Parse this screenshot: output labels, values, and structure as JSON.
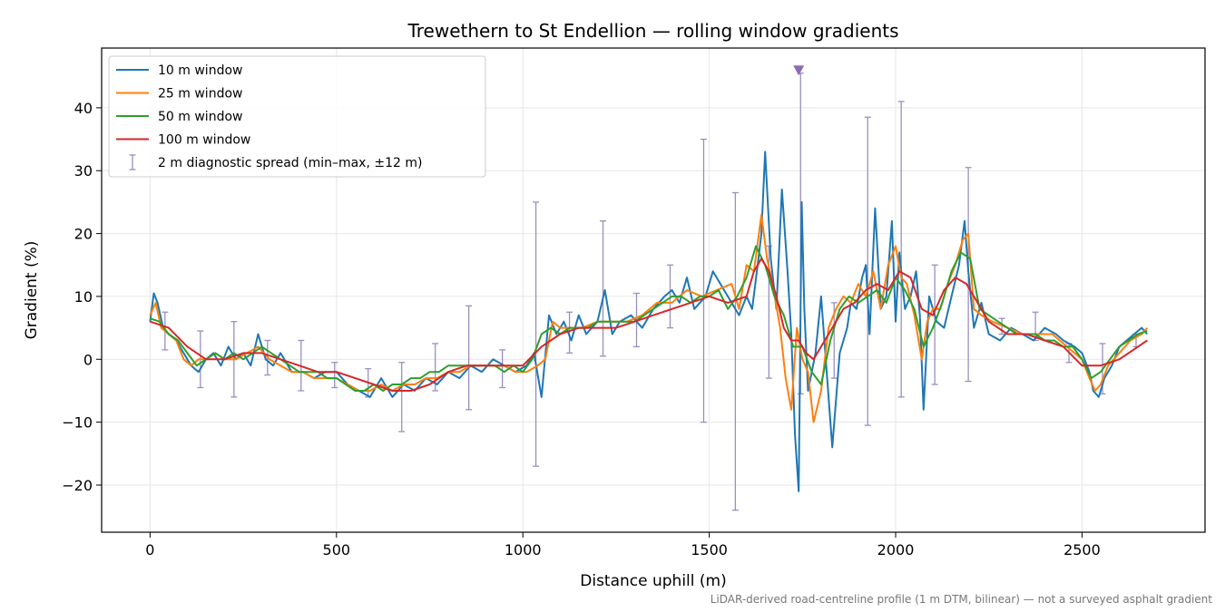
{
  "chart_data": {
    "type": "line",
    "title": "Trewethern to St Endellion — rolling window gradients",
    "xlabel": "Distance uphill (m)",
    "ylabel": "Gradient (%)",
    "footnote": "LiDAR-derived road-centreline profile (1 m DTM, bilinear) — not a surveyed asphalt gradient",
    "xlim": [
      -130,
      2830
    ],
    "ylim": [
      -27.5,
      49.5
    ],
    "xticks": [
      0,
      500,
      1000,
      1500,
      2000,
      2500
    ],
    "xtick_labels": [
      "0",
      "500",
      "1000",
      "1500",
      "2000",
      "2500"
    ],
    "yticks": [
      -20,
      -10,
      0,
      10,
      20,
      30,
      40
    ],
    "ytick_labels": [
      "−20",
      "−10",
      "0",
      "10",
      "20",
      "30",
      "40"
    ],
    "grid": true,
    "legend_position": "top-left",
    "colors": {
      "w10": "#1f77b4",
      "w25": "#ff7f0e",
      "w50": "#2ca02c",
      "w100": "#d62728",
      "errorbar": "#9a8fc0",
      "marker": "#8c6bb1"
    },
    "series": [
      {
        "name": "10 m window",
        "key": "w10",
        "x": [
          0,
          10,
          20,
          35,
          50,
          70,
          90,
          110,
          130,
          150,
          170,
          190,
          210,
          230,
          250,
          270,
          290,
          310,
          330,
          350,
          380,
          410,
          440,
          470,
          500,
          530,
          560,
          590,
          620,
          650,
          680,
          710,
          740,
          770,
          800,
          830,
          860,
          890,
          920,
          950,
          980,
          1010,
          1030,
          1050,
          1070,
          1090,
          1110,
          1130,
          1150,
          1170,
          1200,
          1220,
          1240,
          1260,
          1290,
          1320,
          1350,
          1380,
          1400,
          1420,
          1440,
          1460,
          1490,
          1510,
          1530,
          1560,
          1580,
          1600,
          1615,
          1630,
          1640,
          1650,
          1665,
          1680,
          1695,
          1710,
          1720,
          1730,
          1740,
          1748,
          1755,
          1765,
          1775,
          1785,
          1800,
          1810,
          1830,
          1850,
          1870,
          1880,
          1895,
          1910,
          1920,
          1930,
          1945,
          1960,
          1975,
          1990,
          2000,
          2010,
          2025,
          2040,
          2055,
          2065,
          2075,
          2090,
          2110,
          2130,
          2150,
          2170,
          2185,
          2195,
          2210,
          2230,
          2250,
          2280,
          2310,
          2340,
          2370,
          2400,
          2430,
          2450,
          2480,
          2500,
          2520,
          2530,
          2545,
          2560,
          2580,
          2600,
          2620,
          2640,
          2660,
          2675
        ],
        "y": [
          6,
          10.5,
          9,
          5,
          4,
          3,
          1,
          -1,
          -2,
          0,
          1,
          -1,
          2,
          0,
          1,
          -1,
          4,
          0,
          -1,
          1,
          -2,
          -2,
          -3,
          -2,
          -2,
          -4,
          -5,
          -6,
          -3,
          -6,
          -4,
          -5,
          -3,
          -4,
          -2,
          -3,
          -1,
          -2,
          0,
          -1,
          -2,
          -1,
          1,
          -6,
          7,
          4,
          6,
          3,
          7,
          4,
          6,
          11,
          4,
          6,
          7,
          5,
          8,
          10,
          11,
          9,
          13,
          8,
          10,
          14,
          12,
          9,
          7,
          10,
          8,
          15,
          20,
          33,
          16,
          8,
          27,
          14,
          4,
          -12,
          -21,
          25,
          8,
          -5,
          -2,
          1,
          10,
          2,
          -14,
          1,
          5,
          9,
          8,
          13,
          15,
          4,
          24,
          8,
          10,
          22,
          6,
          17,
          8,
          10,
          14,
          7,
          -8,
          10,
          6,
          5,
          10,
          15,
          22,
          14,
          5,
          9,
          4,
          3,
          5,
          4,
          3,
          5,
          4,
          3,
          2,
          1,
          -2,
          -5,
          -6,
          -3,
          -1,
          2,
          3,
          4,
          5,
          4
        ]
      },
      {
        "name": "25 m window",
        "key": "w25",
        "x": [
          0,
          15,
          30,
          50,
          70,
          90,
          110,
          130,
          150,
          175,
          200,
          230,
          260,
          290,
          320,
          350,
          380,
          410,
          440,
          470,
          500,
          530,
          560,
          590,
          620,
          650,
          680,
          710,
          740,
          770,
          800,
          830,
          860,
          890,
          920,
          950,
          980,
          1010,
          1040,
          1060,
          1080,
          1100,
          1130,
          1160,
          1200,
          1240,
          1280,
          1320,
          1360,
          1400,
          1440,
          1480,
          1520,
          1560,
          1580,
          1600,
          1620,
          1640,
          1655,
          1670,
          1690,
          1705,
          1720,
          1735,
          1750,
          1765,
          1780,
          1800,
          1820,
          1840,
          1860,
          1880,
          1900,
          1920,
          1940,
          1960,
          1980,
          2000,
          2015,
          2030,
          2050,
          2070,
          2085,
          2100,
          2120,
          2140,
          2160,
          2180,
          2195,
          2210,
          2230,
          2260,
          2300,
          2340,
          2380,
          2420,
          2460,
          2500,
          2520,
          2535,
          2550,
          2570,
          2600,
          2630,
          2660,
          2675
        ],
        "y": [
          7,
          9,
          5,
          4,
          3,
          0,
          -1,
          0,
          0,
          1,
          0,
          0,
          1,
          2,
          0,
          -1,
          -2,
          -2,
          -3,
          -3,
          -3,
          -4,
          -5,
          -5,
          -4,
          -5,
          -4,
          -4,
          -3,
          -3,
          -2,
          -2,
          -1,
          -1,
          -1,
          -1,
          -2,
          -2,
          -1,
          0,
          6,
          5,
          5,
          5,
          6,
          6,
          6,
          7,
          9,
          9,
          11,
          10,
          11,
          12,
          8,
          15,
          14,
          23,
          16,
          12,
          5,
          -3,
          -8,
          5,
          0,
          -2,
          -10,
          -5,
          5,
          8,
          10,
          9,
          12,
          10,
          14,
          8,
          15,
          18,
          13,
          12,
          7,
          0,
          6,
          8,
          8,
          12,
          15,
          19,
          20,
          8,
          7,
          6,
          5,
          4,
          4,
          4,
          2,
          0,
          -3,
          -5,
          -4,
          -1,
          1,
          3,
          4,
          5
        ]
      },
      {
        "name": "50 m window",
        "key": "w50",
        "x": [
          0,
          25,
          50,
          75,
          100,
          125,
          150,
          175,
          200,
          225,
          250,
          275,
          300,
          325,
          350,
          375,
          400,
          425,
          450,
          475,
          500,
          525,
          550,
          575,
          600,
          625,
          650,
          675,
          700,
          725,
          750,
          775,
          800,
          825,
          850,
          875,
          900,
          925,
          950,
          975,
          1000,
          1025,
          1050,
          1075,
          1100,
          1125,
          1150,
          1175,
          1200,
          1225,
          1250,
          1275,
          1300,
          1325,
          1350,
          1375,
          1400,
          1425,
          1450,
          1475,
          1500,
          1525,
          1550,
          1575,
          1600,
          1625,
          1650,
          1675,
          1700,
          1725,
          1750,
          1775,
          1800,
          1825,
          1850,
          1875,
          1900,
          1925,
          1950,
          1975,
          2000,
          2025,
          2050,
          2075,
          2100,
          2125,
          2150,
          2175,
          2200,
          2225,
          2250,
          2275,
          2300,
          2325,
          2350,
          2375,
          2400,
          2425,
          2450,
          2475,
          2500,
          2525,
          2550,
          2575,
          2600,
          2625,
          2650,
          2675
        ],
        "y": [
          6.5,
          6,
          4,
          3,
          1,
          -1,
          0,
          1,
          0,
          1,
          0,
          1,
          2,
          1,
          0,
          -1,
          -2,
          -2,
          -2,
          -3,
          -3,
          -4,
          -5,
          -5,
          -4,
          -5,
          -4,
          -4,
          -3,
          -3,
          -2,
          -2,
          -1,
          -1,
          -1,
          -1,
          -1,
          -1,
          -2,
          -1,
          -2,
          0,
          4,
          5,
          4,
          5,
          5,
          5,
          6,
          6,
          6,
          6,
          6,
          7,
          8,
          9,
          10,
          10,
          9,
          10,
          10,
          11,
          8,
          10,
          13,
          18,
          15,
          10,
          7,
          2,
          2,
          -2,
          -4,
          3,
          8,
          10,
          9,
          10,
          11,
          9,
          13,
          11,
          8,
          2,
          5,
          9,
          14,
          17,
          16,
          8,
          7,
          6,
          5,
          4,
          4,
          4,
          3,
          3,
          2,
          2,
          0,
          -3,
          -2,
          0,
          2,
          3,
          4,
          4.5
        ]
      },
      {
        "name": "100 m window",
        "key": "w100",
        "x": [
          0,
          50,
          100,
          150,
          200,
          250,
          300,
          350,
          400,
          450,
          500,
          550,
          600,
          650,
          700,
          750,
          800,
          850,
          900,
          950,
          1000,
          1050,
          1100,
          1150,
          1200,
          1250,
          1300,
          1350,
          1400,
          1450,
          1500,
          1550,
          1600,
          1620,
          1640,
          1660,
          1680,
          1700,
          1720,
          1740,
          1760,
          1780,
          1800,
          1830,
          1860,
          1890,
          1920,
          1950,
          1980,
          2010,
          2040,
          2070,
          2100,
          2130,
          2160,
          2190,
          2220,
          2250,
          2300,
          2350,
          2400,
          2450,
          2500,
          2550,
          2600,
          2650,
          2675
        ],
        "y": [
          6,
          5,
          2,
          0,
          0,
          1,
          1,
          0,
          -1,
          -2,
          -2,
          -3,
          -4,
          -5,
          -5,
          -4,
          -2,
          -1,
          -1,
          -1,
          -1,
          2,
          4,
          5,
          5,
          5,
          6,
          7,
          8,
          9,
          10,
          9,
          10,
          14,
          16,
          14,
          10,
          5,
          3,
          3,
          1,
          0,
          2,
          5,
          8,
          9,
          11,
          12,
          11,
          14,
          13,
          8,
          7,
          11,
          13,
          12,
          9,
          6,
          4,
          4,
          3,
          2,
          -1,
          -1,
          0,
          2,
          3
        ]
      }
    ],
    "errorbars": {
      "name": "2 m diagnostic spread (min–max, ±12 m)",
      "points": [
        {
          "x": 40,
          "low": 1.5,
          "high": 7.5
        },
        {
          "x": 135,
          "low": -4.5,
          "high": 4.5
        },
        {
          "x": 225,
          "low": -6,
          "high": 6
        },
        {
          "x": 315,
          "low": -2.5,
          "high": 3
        },
        {
          "x": 405,
          "low": -5,
          "high": 3
        },
        {
          "x": 495,
          "low": -4.5,
          "high": -0.5
        },
        {
          "x": 585,
          "low": -6,
          "high": -1.5
        },
        {
          "x": 675,
          "low": -11.5,
          "high": -0.5
        },
        {
          "x": 765,
          "low": -5,
          "high": 2.5
        },
        {
          "x": 855,
          "low": -8,
          "high": 8.5
        },
        {
          "x": 945,
          "low": -4.5,
          "high": 1.5
        },
        {
          "x": 1035,
          "low": -17,
          "high": 25
        },
        {
          "x": 1125,
          "low": 1,
          "high": 7.5
        },
        {
          "x": 1215,
          "low": 0.5,
          "high": 22
        },
        {
          "x": 1305,
          "low": 2,
          "high": 10.5
        },
        {
          "x": 1395,
          "low": 5,
          "high": 15
        },
        {
          "x": 1485,
          "low": -10,
          "high": 35
        },
        {
          "x": 1570,
          "low": -24,
          "high": 26.5
        },
        {
          "x": 1660,
          "low": -3,
          "high": 18
        },
        {
          "x": 1745,
          "low": -5.5,
          "high": 45.5
        },
        {
          "x": 1835,
          "low": -3,
          "high": 9
        },
        {
          "x": 1925,
          "low": -10.5,
          "high": 38.5
        },
        {
          "x": 2015,
          "low": -6,
          "high": 41
        },
        {
          "x": 2105,
          "low": -4,
          "high": 15
        },
        {
          "x": 2195,
          "low": -3.5,
          "high": 30.5
        },
        {
          "x": 2285,
          "low": 4,
          "high": 6.5
        },
        {
          "x": 2375,
          "low": 3,
          "high": 7.5
        },
        {
          "x": 2465,
          "low": -0.5,
          "high": 2.5
        },
        {
          "x": 2555,
          "low": -5.5,
          "high": 2.5
        },
        {
          "x": 2645,
          "low": 2,
          "high": 4
        }
      ]
    },
    "clipped_marker": {
      "x": 1740,
      "y": 46
    }
  }
}
